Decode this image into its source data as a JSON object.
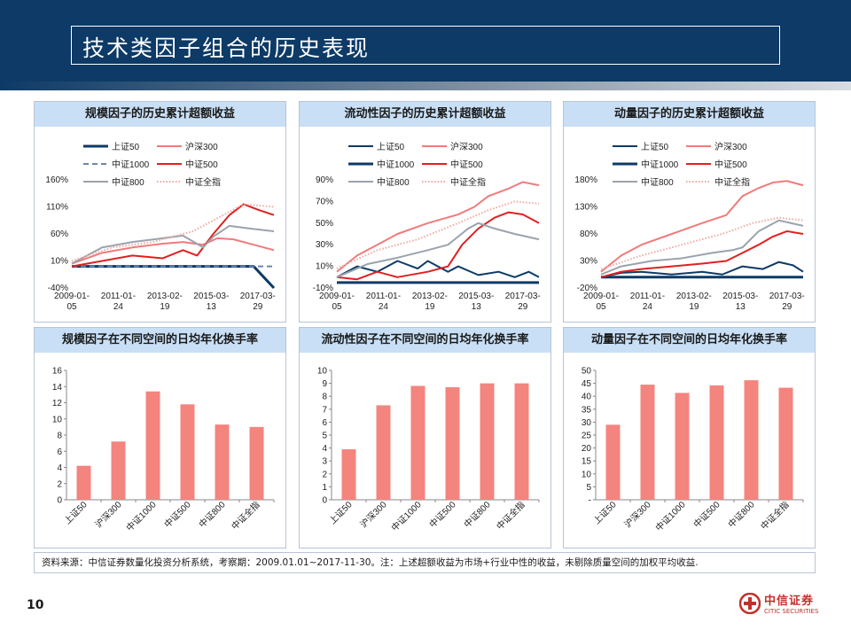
{
  "page": {
    "title": "技术类因子组合的历史表现",
    "number": "10"
  },
  "source_note": "资料来源：中信证券数量化投资分析系统，考察期：2009.01.01~2017-11-30。注：上述超额收益为市场+行业中性的收益，未剔除质量空间的加权平均收益.",
  "logo": {
    "cn": "中信证券",
    "en": "CITIC SECURITIES"
  },
  "colors": {
    "header": "#0d3a66",
    "panel_title_bg": "#c9dff5",
    "bar": "#f4847e",
    "brand": "#c0312b"
  },
  "legend_labels": [
    "上证50",
    "沪深300",
    "中证1000",
    "中证500",
    "中证800",
    "中证全指"
  ],
  "panels": [
    {
      "title": "规模因子的历史累计超额收益"
    },
    {
      "title": "流动性因子的历史累计超额收益"
    },
    {
      "title": "动量因子的历史累计超额收益"
    },
    {
      "title": "规模因子在不同空间的日均年化换手率"
    },
    {
      "title": "流动性因子在不同空间的日均年化换手率"
    },
    {
      "title": "动量因子在不同空间的日均年化换手率"
    }
  ],
  "chart_data": [
    {
      "type": "line",
      "x_tick_labels": [
        "2009-01-05",
        "2011-01-24",
        "2013-02-19",
        "2015-03-13",
        "2017-03-29"
      ],
      "y_tick_labels": [
        "-40%",
        "10%",
        "60%",
        "110%",
        "160%"
      ],
      "ylim": [
        -40,
        160
      ],
      "grid": false,
      "legend_position": "top",
      "series": [
        {
          "name": "上证50",
          "color": "#0d3a66",
          "style": "solid-thick",
          "x": [
            0,
            0.2,
            0.4,
            0.6,
            0.8,
            0.9,
            0.95,
            1.0
          ],
          "y": [
            0,
            0,
            0,
            0,
            0,
            0,
            -20,
            -40
          ]
        },
        {
          "name": "沪深300",
          "color": "#f07b7b",
          "style": "solid",
          "x": [
            0,
            0.15,
            0.3,
            0.45,
            0.55,
            0.65,
            0.72,
            0.8,
            0.9,
            1.0
          ],
          "y": [
            5,
            25,
            35,
            42,
            45,
            40,
            52,
            50,
            40,
            30
          ]
        },
        {
          "name": "中证1000",
          "color": "#6d86a8",
          "style": "dashed",
          "x": [
            0,
            1
          ],
          "y": [
            0,
            0
          ]
        },
        {
          "name": "中证500",
          "color": "#e02020",
          "style": "solid",
          "x": [
            0,
            0.15,
            0.3,
            0.45,
            0.55,
            0.62,
            0.7,
            0.78,
            0.85,
            0.92,
            1.0
          ],
          "y": [
            0,
            10,
            20,
            15,
            30,
            20,
            60,
            95,
            115,
            105,
            95
          ]
        },
        {
          "name": "中证800",
          "color": "#9aa3ad",
          "style": "solid",
          "x": [
            0,
            0.15,
            0.3,
            0.45,
            0.55,
            0.65,
            0.7,
            0.78,
            0.88,
            1.0
          ],
          "y": [
            5,
            35,
            45,
            52,
            57,
            35,
            55,
            75,
            70,
            65
          ]
        },
        {
          "name": "中证全指",
          "color": "#f3a7a0",
          "style": "dotted",
          "x": [
            0,
            0.2,
            0.4,
            0.6,
            0.75,
            0.85,
            1.0
          ],
          "y": [
            10,
            35,
            45,
            65,
            95,
            115,
            110
          ]
        }
      ]
    },
    {
      "type": "line",
      "x_tick_labels": [
        "2009-01-05",
        "2011-01-24",
        "2013-02-19",
        "2015-03-13",
        "2017-03-29"
      ],
      "y_tick_labels": [
        "-10%",
        "10%",
        "30%",
        "50%",
        "70%",
        "90%"
      ],
      "ylim": [
        -10,
        90
      ],
      "grid": false,
      "legend_position": "top",
      "series": [
        {
          "name": "上证50",
          "color": "#0d3a66",
          "style": "solid",
          "x": [
            0,
            0.1,
            0.2,
            0.3,
            0.4,
            0.45,
            0.55,
            0.6,
            0.7,
            0.8,
            0.88,
            0.95,
            1.0
          ],
          "y": [
            0,
            10,
            5,
            15,
            8,
            15,
            5,
            10,
            2,
            5,
            0,
            5,
            0
          ]
        },
        {
          "name": "沪深300",
          "color": "#f07b7b",
          "style": "solid",
          "x": [
            0,
            0.1,
            0.2,
            0.3,
            0.45,
            0.6,
            0.68,
            0.75,
            0.85,
            0.92,
            1.0
          ],
          "y": [
            5,
            20,
            30,
            40,
            50,
            58,
            65,
            75,
            82,
            88,
            85
          ]
        },
        {
          "name": "中证1000",
          "color": "#0d3a66",
          "style": "solid-thick",
          "x": [
            0,
            1
          ],
          "y": [
            -5,
            -5
          ]
        },
        {
          "name": "中证500",
          "color": "#e02020",
          "style": "solid",
          "x": [
            0,
            0.1,
            0.2,
            0.3,
            0.45,
            0.55,
            0.62,
            0.7,
            0.78,
            0.85,
            0.92,
            1.0
          ],
          "y": [
            0,
            -2,
            5,
            0,
            5,
            10,
            30,
            45,
            55,
            60,
            58,
            50
          ]
        },
        {
          "name": "中证800",
          "color": "#9aa3ad",
          "style": "solid",
          "x": [
            0,
            0.15,
            0.3,
            0.45,
            0.55,
            0.65,
            0.7,
            0.78,
            0.88,
            1.0
          ],
          "y": [
            0,
            12,
            18,
            25,
            30,
            45,
            50,
            45,
            40,
            35
          ]
        },
        {
          "name": "中证全指",
          "color": "#f3a7a0",
          "style": "dotted",
          "x": [
            0,
            0.2,
            0.4,
            0.6,
            0.75,
            0.88,
            1.0
          ],
          "y": [
            8,
            25,
            35,
            50,
            62,
            70,
            68
          ]
        }
      ]
    },
    {
      "type": "line",
      "x_tick_labels": [
        "2009-01-05",
        "2011-01-24",
        "2013-02-19",
        "2015-03-13",
        "2017-03-29"
      ],
      "y_tick_labels": [
        "-20%",
        "30%",
        "80%",
        "130%",
        "180%"
      ],
      "ylim": [
        -20,
        180
      ],
      "grid": false,
      "legend_position": "top",
      "series": [
        {
          "name": "上证50",
          "color": "#0d3a66",
          "style": "solid",
          "x": [
            0,
            0.1,
            0.2,
            0.35,
            0.5,
            0.6,
            0.7,
            0.8,
            0.88,
            0.95,
            1.0
          ],
          "y": [
            0,
            8,
            10,
            5,
            10,
            5,
            20,
            15,
            28,
            22,
            10
          ]
        },
        {
          "name": "沪深300",
          "color": "#f07b7b",
          "style": "solid",
          "x": [
            0,
            0.1,
            0.2,
            0.35,
            0.5,
            0.62,
            0.7,
            0.78,
            0.85,
            0.92,
            1.0
          ],
          "y": [
            10,
            40,
            60,
            80,
            100,
            115,
            150,
            165,
            175,
            178,
            170
          ]
        },
        {
          "name": "中证1000",
          "color": "#0d3a66",
          "style": "solid-thick",
          "x": [
            0,
            1
          ],
          "y": [
            0,
            0
          ]
        },
        {
          "name": "中证500",
          "color": "#e02020",
          "style": "solid",
          "x": [
            0,
            0.1,
            0.2,
            0.35,
            0.5,
            0.62,
            0.7,
            0.78,
            0.85,
            0.92,
            1.0
          ],
          "y": [
            0,
            10,
            15,
            20,
            25,
            30,
            45,
            60,
            75,
            85,
            80
          ]
        },
        {
          "name": "中证800",
          "color": "#9aa3ad",
          "style": "solid",
          "x": [
            0,
            0.1,
            0.25,
            0.4,
            0.55,
            0.65,
            0.7,
            0.78,
            0.88,
            1.0
          ],
          "y": [
            5,
            20,
            30,
            35,
            45,
            50,
            55,
            85,
            105,
            95
          ]
        },
        {
          "name": "中证全指",
          "color": "#f3a7a0",
          "style": "dotted",
          "x": [
            0,
            0.2,
            0.4,
            0.6,
            0.75,
            0.88,
            1.0
          ],
          "y": [
            15,
            40,
            60,
            80,
            100,
            110,
            105
          ]
        }
      ]
    },
    {
      "type": "bar",
      "categories": [
        "上证50",
        "沪深300",
        "中证1000",
        "中证500",
        "中证800",
        "中证全指"
      ],
      "values": [
        4.2,
        7.2,
        13.4,
        11.8,
        9.3,
        9.0
      ],
      "ylim": [
        0,
        16
      ],
      "y_tick_labels": [
        "0",
        "2",
        "4",
        "6",
        "8",
        "10",
        "12",
        "14",
        "16"
      ],
      "color": "#f4847e"
    },
    {
      "type": "bar",
      "categories": [
        "上证50",
        "沪深300",
        "中证1000",
        "中证500",
        "中证800",
        "中证全指"
      ],
      "values": [
        3.9,
        7.3,
        8.8,
        8.7,
        9.0,
        9.0
      ],
      "ylim": [
        0,
        10
      ],
      "y_tick_labels": [
        "0",
        "1",
        "2",
        "3",
        "4",
        "5",
        "6",
        "7",
        "8",
        "9",
        "10"
      ],
      "color": "#f4847e"
    },
    {
      "type": "bar",
      "categories": [
        "上证50",
        "沪深300",
        "中证1000",
        "中证500",
        "中证800",
        "中证全指"
      ],
      "values": [
        29,
        44.5,
        41.3,
        44.2,
        46.2,
        43.3
      ],
      "ylim": [
        0,
        50
      ],
      "y_tick_labels": [
        "-",
        "5",
        "10",
        "15",
        "20",
        "25",
        "30",
        "35",
        "40",
        "45",
        "50"
      ],
      "color": "#f4847e"
    }
  ]
}
